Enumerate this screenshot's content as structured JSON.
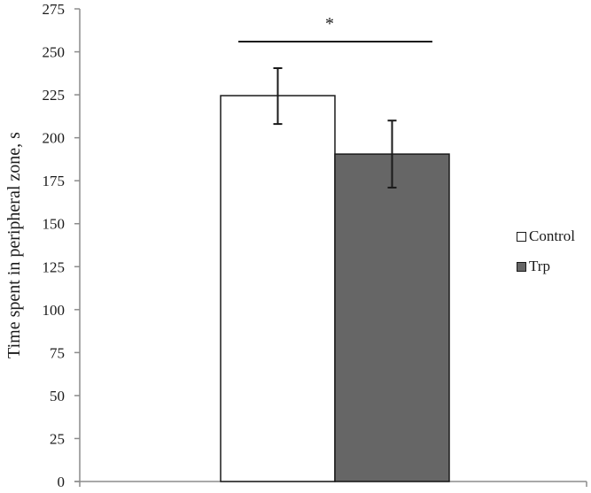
{
  "chart_data": {
    "type": "bar",
    "title": "",
    "xlabel": "",
    "ylabel": "Time spent in peripheral zone, s",
    "ylim": [
      0,
      275
    ],
    "yticks": [
      0,
      25,
      50,
      75,
      100,
      125,
      150,
      175,
      200,
      225,
      250,
      275
    ],
    "grid": false,
    "legend_position": "right",
    "categories": [
      ""
    ],
    "series": [
      {
        "name": "Control",
        "values": [
          224.5
        ],
        "error_low": [
          208
        ],
        "error_high": [
          240.5
        ],
        "color": "#ffffff"
      },
      {
        "name": "Trp",
        "values": [
          190.5
        ],
        "error_low": [
          171
        ],
        "error_high": [
          210
        ],
        "color": "#666666"
      }
    ],
    "annotations": [
      {
        "type": "significance",
        "text": "*",
        "between": [
          "Control",
          "Trp"
        ]
      }
    ]
  },
  "legend": {
    "items": [
      {
        "label": "Control",
        "color": "#ffffff"
      },
      {
        "label": "Trp",
        "color": "#666666"
      }
    ]
  }
}
